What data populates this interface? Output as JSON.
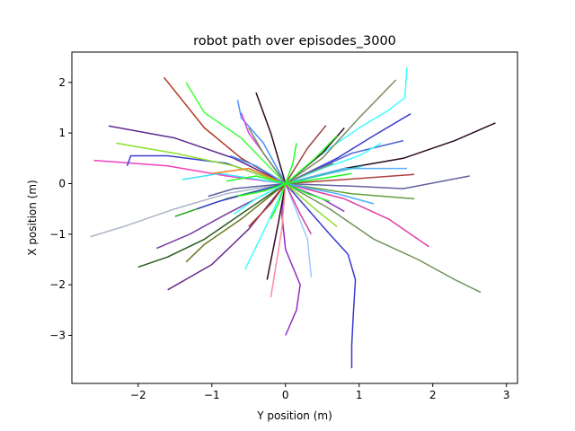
{
  "chart_data": {
    "type": "line",
    "title": "robot path over episodes_3000",
    "xlabel": "Y position (m)",
    "ylabel": "X position (m)",
    "xlim": [
      -2.9,
      3.15
    ],
    "ylim": [
      -3.95,
      2.6
    ],
    "xticks": [
      -2,
      -1,
      0,
      1,
      2,
      3
    ],
    "yticks": [
      -3,
      -2,
      -1,
      0,
      1,
      2
    ],
    "xtick_labels": [
      "−2",
      "−1",
      "0",
      "1",
      "2",
      "3"
    ],
    "ytick_labels": [
      "−3",
      "−2",
      "−1",
      "0",
      "1",
      "2"
    ],
    "grid": false,
    "legend": "none",
    "series": [
      {
        "color": "#3a3ad0",
        "points": [
          [
            0,
            0
          ],
          [
            0.3,
            -0.5
          ],
          [
            0.6,
            -1.0
          ],
          [
            0.85,
            -1.4
          ],
          [
            0.95,
            -1.9
          ],
          [
            0.92,
            -2.6
          ],
          [
            0.9,
            -3.2
          ],
          [
            0.9,
            -3.65
          ]
        ]
      },
      {
        "color": "#9030c0",
        "points": [
          [
            0,
            0
          ],
          [
            -0.05,
            -0.6
          ],
          [
            0.0,
            -1.3
          ],
          [
            0.2,
            -2.0
          ],
          [
            0.15,
            -2.5
          ],
          [
            0.0,
            -3.0
          ]
        ]
      },
      {
        "color": "#2a0a20",
        "points": [
          [
            0,
            0
          ],
          [
            0.8,
            0.3
          ],
          [
            1.6,
            0.5
          ],
          [
            2.3,
            0.85
          ],
          [
            2.85,
            1.2
          ]
        ]
      },
      {
        "color": "#70905a",
        "points": [
          [
            0,
            0
          ],
          [
            0.6,
            -0.5
          ],
          [
            1.2,
            -1.1
          ],
          [
            1.8,
            -1.5
          ],
          [
            2.3,
            -1.9
          ],
          [
            2.65,
            -2.15
          ]
        ]
      },
      {
        "color": "#aab4c8",
        "points": [
          [
            0,
            0
          ],
          [
            -0.8,
            -0.2
          ],
          [
            -1.5,
            -0.5
          ],
          [
            -2.2,
            -0.85
          ],
          [
            -2.65,
            -1.05
          ]
        ]
      },
      {
        "color": "#b03a20",
        "points": [
          [
            0,
            0
          ],
          [
            -0.6,
            0.5
          ],
          [
            -1.1,
            1.1
          ],
          [
            -1.65,
            2.1
          ]
        ]
      },
      {
        "color": "#f040c0",
        "points": [
          [
            0,
            0
          ],
          [
            -0.8,
            0.15
          ],
          [
            -1.6,
            0.35
          ],
          [
            -2.6,
            0.46
          ]
        ]
      },
      {
        "color": "#2a5a20",
        "points": [
          [
            0,
            0
          ],
          [
            -0.5,
            -0.5
          ],
          [
            -1.1,
            -1.1
          ],
          [
            -1.6,
            -1.45
          ],
          [
            -2.0,
            -1.65
          ]
        ]
      },
      {
        "color": "#5a2a90",
        "points": [
          [
            0,
            0
          ],
          [
            -0.7,
            0.5
          ],
          [
            -1.5,
            0.9
          ],
          [
            -2.4,
            1.14
          ]
        ]
      },
      {
        "color": "#6a2a8a",
        "points": [
          [
            0,
            0
          ],
          [
            -0.5,
            -0.9
          ],
          [
            -1.0,
            -1.6
          ],
          [
            -1.6,
            -2.1
          ]
        ]
      },
      {
        "color": "#40ffff",
        "points": [
          [
            0,
            0
          ],
          [
            0.5,
            0.6
          ],
          [
            1.0,
            1.1
          ],
          [
            1.4,
            1.45
          ],
          [
            1.62,
            1.7
          ],
          [
            1.65,
            2.3
          ]
        ]
      },
      {
        "color": "#7a8a60",
        "points": [
          [
            0,
            0
          ],
          [
            0.5,
            0.5
          ],
          [
            1.0,
            1.3
          ],
          [
            1.5,
            2.05
          ]
        ]
      },
      {
        "color": "#3a3ad0",
        "points": [
          [
            0,
            0
          ],
          [
            0.7,
            0.5
          ],
          [
            1.2,
            0.95
          ],
          [
            1.7,
            1.38
          ]
        ]
      },
      {
        "color": "#e040a0",
        "points": [
          [
            0,
            0
          ],
          [
            0.8,
            -0.3
          ],
          [
            1.4,
            -0.7
          ],
          [
            1.95,
            -1.25
          ]
        ]
      },
      {
        "color": "#6060a0",
        "points": [
          [
            0,
            0
          ],
          [
            0.9,
            -0.05
          ],
          [
            1.6,
            -0.1
          ],
          [
            2.5,
            0.15
          ]
        ]
      },
      {
        "color": "#4a90ff",
        "points": [
          [
            0,
            0
          ],
          [
            -0.3,
            0.8
          ],
          [
            -0.6,
            1.3
          ],
          [
            -0.65,
            1.65
          ]
        ]
      },
      {
        "color": "#7a3aa0",
        "points": [
          [
            0,
            0
          ],
          [
            -0.8,
            -0.6
          ],
          [
            -1.3,
            -1.0
          ],
          [
            -1.75,
            -1.28
          ]
        ]
      },
      {
        "color": "#40ffff",
        "points": [
          [
            0,
            0
          ],
          [
            -0.25,
            -0.8
          ],
          [
            -0.55,
            -1.7
          ]
        ]
      },
      {
        "color": "#3a3ad0",
        "points": [
          [
            0,
            0
          ],
          [
            -0.8,
            0.4
          ],
          [
            -1.6,
            0.55
          ],
          [
            -2.1,
            0.55
          ],
          [
            -2.15,
            0.35
          ]
        ]
      },
      {
        "color": "#8ae02a",
        "points": [
          [
            0,
            0
          ],
          [
            -0.7,
            0.35
          ],
          [
            -1.5,
            0.6
          ],
          [
            -2.3,
            0.8
          ]
        ]
      },
      {
        "color": "#6a7a20",
        "points": [
          [
            0,
            0
          ],
          [
            -0.6,
            -0.7
          ],
          [
            -1.1,
            -1.2
          ],
          [
            -1.35,
            -1.55
          ]
        ]
      },
      {
        "color": "#2a0a20",
        "points": [
          [
            0,
            0
          ],
          [
            -0.1,
            -0.8
          ],
          [
            -0.25,
            -1.9
          ]
        ]
      },
      {
        "color": "#ff8aa0",
        "points": [
          [
            0,
            0
          ],
          [
            -0.05,
            -0.9
          ],
          [
            -0.15,
            -1.8
          ],
          [
            -0.2,
            -2.25
          ]
        ]
      },
      {
        "color": "#a0c8ff",
        "points": [
          [
            0,
            0
          ],
          [
            0.3,
            -1.1
          ],
          [
            0.35,
            -1.85
          ]
        ]
      },
      {
        "color": "#2a0a20",
        "points": [
          [
            0,
            0
          ],
          [
            -0.2,
            1.0
          ],
          [
            -0.4,
            1.8
          ]
        ]
      },
      {
        "color": "#40ff40",
        "points": [
          [
            0,
            0
          ],
          [
            -0.6,
            0.9
          ],
          [
            -1.1,
            1.4
          ],
          [
            -1.35,
            2.0
          ]
        ]
      },
      {
        "color": "#5ab0ff",
        "points": [
          [
            0,
            0
          ],
          [
            0.8,
            0.3
          ],
          [
            1.65,
            0.3
          ]
        ]
      },
      {
        "color": "#60a040",
        "points": [
          [
            0,
            0
          ],
          [
            0.9,
            -0.2
          ],
          [
            1.75,
            -0.3
          ]
        ]
      },
      {
        "color": "#b04040",
        "points": [
          [
            0,
            0
          ],
          [
            1.0,
            0.1
          ],
          [
            1.75,
            0.18
          ]
        ]
      },
      {
        "color": "#4a60d0",
        "points": [
          [
            0,
            0
          ],
          [
            0.9,
            0.6
          ],
          [
            1.6,
            0.85
          ]
        ]
      },
      {
        "color": "#40ffff",
        "points": [
          [
            0,
            0
          ],
          [
            0.5,
            0.3
          ],
          [
            1.0,
            0.55
          ],
          [
            1.3,
            0.8
          ]
        ]
      },
      {
        "color": "#20a020",
        "points": [
          [
            0,
            0
          ],
          [
            -0.8,
            -0.3
          ],
          [
            -1.5,
            -0.65
          ]
        ]
      },
      {
        "color": "#40e0ff",
        "points": [
          [
            0,
            0
          ],
          [
            -0.9,
            0.2
          ],
          [
            -1.4,
            0.08
          ]
        ]
      },
      {
        "color": "#2a0a20",
        "points": [
          [
            0,
            0
          ],
          [
            0.5,
            0.6
          ],
          [
            0.8,
            1.1
          ]
        ]
      },
      {
        "color": "#f08020",
        "points": [
          [
            0,
            0
          ],
          [
            -0.5,
            0.3
          ],
          [
            -1.0,
            0.2
          ]
        ]
      },
      {
        "color": "#e040e0",
        "points": [
          [
            0,
            0
          ],
          [
            -0.5,
            1.0
          ],
          [
            -0.6,
            1.4
          ]
        ]
      },
      {
        "color": "#4ab0ff",
        "points": [
          [
            0,
            0
          ],
          [
            0.7,
            -0.2
          ],
          [
            1.2,
            -0.4
          ]
        ]
      },
      {
        "color": "#a04040",
        "points": [
          [
            0,
            0
          ],
          [
            0.3,
            0.7
          ],
          [
            0.55,
            1.15
          ]
        ]
      },
      {
        "color": "#30c0c0",
        "points": [
          [
            0,
            0
          ],
          [
            0.6,
            0.2
          ],
          [
            1.05,
            0.35
          ]
        ]
      },
      {
        "color": "#3a3ad0",
        "points": [
          [
            0,
            0
          ],
          [
            -0.9,
            -0.35
          ],
          [
            -1.2,
            -0.5
          ]
        ]
      },
      {
        "color": "#70905a",
        "points": [
          [
            0,
            0
          ],
          [
            -0.3,
            0.6
          ],
          [
            -0.5,
            1.1
          ]
        ]
      },
      {
        "color": "#8ae02a",
        "points": [
          [
            0,
            0
          ],
          [
            0.4,
            -0.5
          ],
          [
            0.7,
            -0.85
          ]
        ]
      },
      {
        "color": "#d040a0",
        "points": [
          [
            0,
            0
          ],
          [
            0.2,
            -0.6
          ],
          [
            0.35,
            -1.0
          ]
        ]
      },
      {
        "color": "#6060a0",
        "points": [
          [
            0,
            0
          ],
          [
            -0.7,
            -0.1
          ],
          [
            -1.05,
            -0.25
          ]
        ]
      },
      {
        "color": "#40ff40",
        "points": [
          [
            0,
            0
          ],
          [
            0.4,
            0.5
          ],
          [
            0.7,
            0.95
          ]
        ]
      },
      {
        "color": "#9030c0",
        "points": [
          [
            0,
            0
          ],
          [
            0.5,
            -0.3
          ],
          [
            0.8,
            -0.55
          ]
        ]
      },
      {
        "color": "#40ffff",
        "points": [
          [
            0,
            0
          ],
          [
            -0.4,
            -0.3
          ],
          [
            -0.7,
            -0.6
          ]
        ]
      },
      {
        "color": "#b03a20",
        "points": [
          [
            0,
            0
          ],
          [
            -0.2,
            -0.4
          ],
          [
            -0.5,
            -0.85
          ]
        ]
      },
      {
        "color": "#7a8a60",
        "points": [
          [
            0,
            0
          ],
          [
            0.3,
            0.2
          ],
          [
            0.65,
            0.4
          ]
        ]
      },
      {
        "color": "#4a90ff",
        "points": [
          [
            0,
            0
          ],
          [
            -0.4,
            0.35
          ],
          [
            -0.75,
            0.55
          ]
        ]
      },
      {
        "color": "#20ff20",
        "points": [
          [
            0,
            0
          ],
          [
            -0.4,
            0.15
          ],
          [
            -0.8,
            0.05
          ]
        ]
      },
      {
        "color": "#20ff20",
        "points": [
          [
            0,
            0
          ],
          [
            0.3,
            -0.2
          ],
          [
            0.6,
            -0.35
          ]
        ]
      },
      {
        "color": "#20ff20",
        "points": [
          [
            0,
            0
          ],
          [
            0.1,
            0.4
          ],
          [
            0.15,
            0.8
          ]
        ]
      },
      {
        "color": "#20ff20",
        "points": [
          [
            0,
            0
          ],
          [
            -0.1,
            -0.4
          ],
          [
            -0.2,
            -0.7
          ]
        ]
      },
      {
        "color": "#20ff20",
        "points": [
          [
            0,
            0
          ],
          [
            0.5,
            0.1
          ],
          [
            0.9,
            0.2
          ]
        ]
      },
      {
        "color": "#20ff20",
        "points": [
          [
            0,
            0
          ],
          [
            -0.3,
            -0.15
          ],
          [
            -0.65,
            -0.25
          ]
        ]
      }
    ]
  }
}
